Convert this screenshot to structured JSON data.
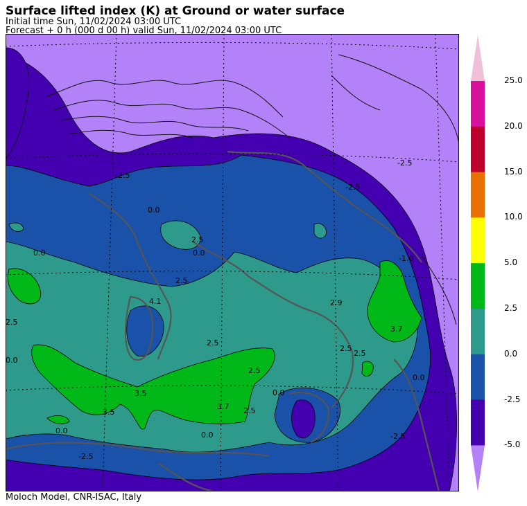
{
  "header": {
    "title": "Surface lifted index (K) at Ground or water surface",
    "initial_time": "Initial time  Sun, 11/02/2024  03:00 UTC",
    "forecast": "Forecast  +   0 h  (000 d 00 h)  valid Sun, 11/02/2024 03:00 UTC"
  },
  "footer": "Moloch Model, CNR-ISAC, Italy",
  "colorbar": {
    "labels": [
      "25.0",
      "20.0",
      "15.0",
      "10.0",
      "5.0",
      "2.5",
      "0.0",
      "-2.5",
      "-5.0"
    ],
    "colors": {
      "over": "#f0c0d8",
      "20-25": "#d8109c",
      "15-20": "#c0002c",
      "10-15": "#e87000",
      "5-10": "#ffff00",
      "2.5-5": "#00b818",
      "0-2.5": "#2e9a8c",
      "-2.5-0": "#1a52aa",
      "-5--2.5": "#4400b0",
      "under": "#b482f8"
    }
  },
  "map": {
    "contour_labels": [
      "0.0",
      "-2.5",
      "2.5",
      "0.0",
      "2.5",
      "2.5",
      "2.5",
      "0.0",
      "-2.5",
      "3.7",
      "3.5",
      "2.5",
      "0.0",
      "-2.5",
      "0.0",
      "3.7",
      "3.5",
      "2.5",
      "0.0",
      "0.0",
      "-2.5",
      "2.5",
      "-2.5",
      "2.9",
      "0.0",
      "-1.0",
      "2.5",
      "4.1"
    ]
  }
}
